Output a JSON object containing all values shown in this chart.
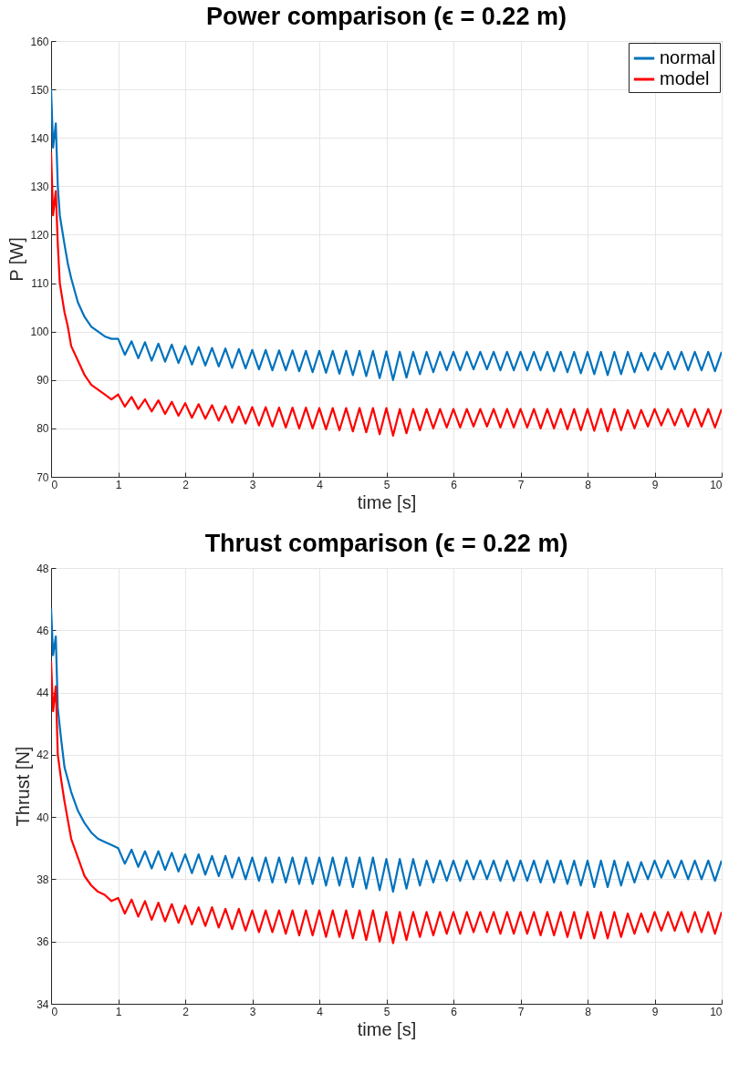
{
  "chart_data": [
    {
      "type": "line",
      "title": "Power comparison (ϵ = 0.22 m)",
      "xlabel": "time [s]",
      "ylabel": "P [W]",
      "xlim": [
        0,
        10
      ],
      "xticks": [
        0,
        1,
        2,
        3,
        4,
        5,
        6,
        7,
        8,
        9,
        10
      ],
      "ylim": [
        70,
        160
      ],
      "yticks": [
        70,
        80,
        90,
        100,
        110,
        120,
        130,
        140,
        150,
        160
      ],
      "grid": true,
      "legend": "top right",
      "line_style": "solid",
      "marker": "none",
      "x": [
        0,
        0.03,
        0.07,
        0.1,
        0.13,
        0.2,
        0.25,
        0.3,
        0.4,
        0.5,
        0.6,
        0.7,
        0.8,
        0.9,
        1,
        1.1,
        1.2,
        1.3,
        1.4,
        1.5,
        1.6,
        1.7,
        1.8,
        1.9,
        2,
        2.1,
        2.2,
        2.3,
        2.4,
        2.5,
        2.6,
        2.7,
        2.8,
        2.9,
        3,
        3.1,
        3.2,
        3.3,
        3.4,
        3.5,
        3.6,
        3.7,
        3.8,
        3.9,
        4,
        4.1,
        4.2,
        4.3,
        4.4,
        4.5,
        4.6,
        4.7,
        4.8,
        4.9,
        5,
        5.1,
        5.2,
        5.3,
        5.4,
        5.5,
        5.6,
        5.7,
        5.8,
        5.9,
        6,
        6.1,
        6.2,
        6.3,
        6.4,
        6.5,
        6.6,
        6.7,
        6.8,
        6.9,
        7,
        7.1,
        7.2,
        7.3,
        7.4,
        7.5,
        7.6,
        7.7,
        7.8,
        7.9,
        8,
        8.1,
        8.2,
        8.3,
        8.4,
        8.5,
        8.6,
        8.7,
        8.8,
        8.9,
        9,
        9.1,
        9.2,
        9.3,
        9.4,
        9.5,
        9.6,
        9.7,
        9.8,
        9.9,
        10
      ],
      "series": [
        {
          "name": "normal",
          "color": "#0072bd",
          "values": [
            150,
            138,
            143,
            130,
            124,
            118,
            114,
            111,
            106,
            103,
            101,
            100,
            99,
            98.5,
            98.5,
            95.2,
            98,
            94.5,
            97.8,
            94,
            97.5,
            93.8,
            97.3,
            93.5,
            97,
            93.2,
            96.8,
            93,
            96.6,
            92.8,
            96.5,
            92.5,
            96.4,
            92.4,
            96.2,
            92.2,
            96.2,
            92,
            96.1,
            92,
            96.1,
            91.8,
            96,
            91.6,
            96,
            91.5,
            96,
            91.3,
            96,
            91,
            96,
            90.8,
            96,
            90.4,
            95.9,
            90,
            95.8,
            90.5,
            95.8,
            91.2,
            95.8,
            91.6,
            95.8,
            92,
            95.8,
            92,
            95.8,
            92.2,
            95.8,
            92.2,
            95.8,
            92,
            95.8,
            92,
            95.8,
            92,
            95.8,
            92,
            95.8,
            91.8,
            95.8,
            91.6,
            95.8,
            91.4,
            95.8,
            91.2,
            95.8,
            91,
            95.8,
            91.2,
            95.8,
            91.6,
            95.6,
            92,
            95.6,
            92.2,
            95.8,
            92.2,
            95.8,
            92,
            95.8,
            92,
            95.8,
            91.8,
            95.8
          ]
        },
        {
          "name": "model",
          "color": "#ff0000",
          "values": [
            137,
            124,
            129,
            118,
            110,
            104,
            101,
            97,
            94,
            91,
            89,
            88,
            87,
            86,
            87,
            84.5,
            86.5,
            84,
            86,
            83.5,
            85.8,
            83,
            85.5,
            82.6,
            85.2,
            82.2,
            85,
            82,
            84.8,
            81.6,
            84.6,
            81.2,
            84.5,
            81,
            84.4,
            80.6,
            84.4,
            80.4,
            84.3,
            80.2,
            84.3,
            80,
            84.3,
            80,
            84.2,
            79.8,
            84.2,
            79.6,
            84.2,
            79.4,
            84.2,
            79.2,
            84.2,
            78.8,
            84.2,
            78.5,
            84,
            79,
            84,
            79.6,
            84,
            80,
            84,
            80.2,
            84,
            80.2,
            84,
            80.4,
            84,
            80.4,
            84,
            80.2,
            84,
            80.2,
            84,
            80.2,
            84,
            80,
            84,
            80,
            84,
            79.8,
            84,
            79.6,
            84,
            79.5,
            84,
            79.4,
            84,
            79.6,
            83.8,
            80,
            83.8,
            80.4,
            84,
            80.6,
            84,
            80.6,
            84,
            80.4,
            84,
            80.4,
            84,
            80.2,
            84
          ]
        }
      ]
    },
    {
      "type": "line",
      "title": "Thrust comparison (ϵ = 0.22 m)",
      "xlabel": "time [s]",
      "ylabel": "Thrust [N]",
      "xlim": [
        0,
        10
      ],
      "xticks": [
        0,
        1,
        2,
        3,
        4,
        5,
        6,
        7,
        8,
        9,
        10
      ],
      "ylim": [
        34,
        48
      ],
      "yticks": [
        34,
        36,
        38,
        40,
        42,
        44,
        46,
        48
      ],
      "grid": true,
      "legend": "top right",
      "line_style": "solid",
      "marker": "none",
      "x": [
        0,
        0.03,
        0.07,
        0.1,
        0.15,
        0.2,
        0.3,
        0.4,
        0.5,
        0.6,
        0.7,
        0.8,
        0.9,
        1,
        1.1,
        1.2,
        1.3,
        1.4,
        1.5,
        1.6,
        1.7,
        1.8,
        1.9,
        2,
        2.1,
        2.2,
        2.3,
        2.4,
        2.5,
        2.6,
        2.7,
        2.8,
        2.9,
        3,
        3.1,
        3.2,
        3.3,
        3.4,
        3.5,
        3.6,
        3.7,
        3.8,
        3.9,
        4,
        4.1,
        4.2,
        4.3,
        4.4,
        4.5,
        4.6,
        4.7,
        4.8,
        4.9,
        5,
        5.1,
        5.2,
        5.3,
        5.4,
        5.5,
        5.6,
        5.7,
        5.8,
        5.9,
        6,
        6.1,
        6.2,
        6.3,
        6.4,
        6.5,
        6.6,
        6.7,
        6.8,
        6.9,
        7,
        7.1,
        7.2,
        7.3,
        7.4,
        7.5,
        7.6,
        7.7,
        7.8,
        7.9,
        8,
        8.1,
        8.2,
        8.3,
        8.4,
        8.5,
        8.6,
        8.7,
        8.8,
        8.9,
        9,
        9.1,
        9.2,
        9.3,
        9.4,
        9.5,
        9.6,
        9.7,
        9.8,
        9.9,
        10
      ],
      "series": [
        {
          "name": "normal",
          "color": "#0072bd",
          "values": [
            46.7,
            45.2,
            45.8,
            43.5,
            42.5,
            41.6,
            40.8,
            40.2,
            39.8,
            39.5,
            39.3,
            39.2,
            39.1,
            39,
            38.5,
            38.95,
            38.4,
            38.9,
            38.35,
            38.9,
            38.3,
            38.85,
            38.25,
            38.8,
            38.2,
            38.8,
            38.15,
            38.75,
            38.1,
            38.75,
            38.05,
            38.7,
            38,
            38.7,
            37.95,
            38.7,
            37.9,
            38.7,
            37.9,
            38.7,
            37.85,
            38.7,
            37.85,
            38.7,
            37.8,
            38.7,
            37.8,
            38.7,
            37.75,
            38.7,
            37.7,
            38.7,
            37.65,
            38.65,
            37.6,
            38.65,
            37.7,
            38.65,
            37.8,
            38.6,
            37.9,
            38.6,
            37.95,
            38.6,
            37.95,
            38.6,
            38,
            38.6,
            38,
            38.6,
            37.95,
            38.6,
            37.95,
            38.6,
            37.95,
            38.6,
            37.9,
            38.6,
            37.9,
            38.6,
            37.85,
            38.6,
            37.8,
            38.6,
            37.75,
            38.6,
            37.75,
            38.6,
            37.8,
            38.55,
            37.9,
            38.55,
            38,
            38.6,
            38.05,
            38.6,
            38.05,
            38.6,
            38,
            38.6,
            38,
            38.6,
            37.95,
            38.6
          ]
        },
        {
          "name": "model",
          "color": "#ff0000",
          "values": [
            45,
            43.4,
            44.2,
            42,
            41.2,
            40.5,
            39.3,
            38.7,
            38.1,
            37.8,
            37.6,
            37.5,
            37.3,
            37.4,
            36.9,
            37.35,
            36.8,
            37.3,
            36.7,
            37.25,
            36.65,
            37.2,
            36.6,
            37.15,
            36.55,
            37.1,
            36.5,
            37.1,
            36.45,
            37.05,
            36.4,
            37.05,
            36.35,
            37,
            36.3,
            37,
            36.3,
            37,
            36.25,
            37,
            36.2,
            37,
            36.2,
            37,
            36.15,
            37,
            36.15,
            37,
            36.1,
            37,
            36.05,
            37,
            36,
            36.95,
            35.95,
            36.95,
            36.05,
            36.95,
            36.15,
            36.95,
            36.2,
            36.95,
            36.25,
            36.95,
            36.25,
            36.95,
            36.3,
            36.95,
            36.3,
            36.95,
            36.25,
            36.95,
            36.25,
            36.95,
            36.25,
            36.95,
            36.2,
            36.95,
            36.2,
            36.95,
            36.15,
            36.95,
            36.1,
            36.95,
            36.1,
            36.95,
            36.1,
            36.95,
            36.15,
            36.9,
            36.25,
            36.9,
            36.3,
            36.95,
            36.35,
            36.95,
            36.35,
            36.95,
            36.3,
            36.95,
            36.3,
            36.95,
            36.25,
            36.95
          ]
        }
      ]
    }
  ]
}
